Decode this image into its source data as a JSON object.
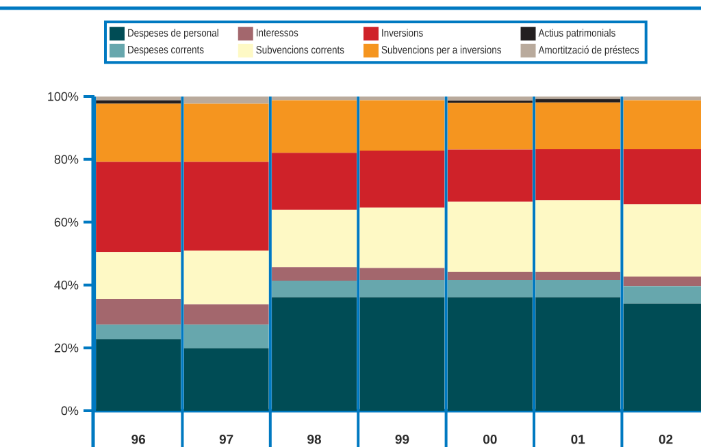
{
  "chart_data": {
    "type": "bar",
    "stacked": true,
    "legend": "top",
    "grid": "x",
    "categories": [
      "96",
      "97",
      "98",
      "99",
      "00",
      "01",
      "02"
    ],
    "ylim": [
      0,
      100
    ],
    "yticks": [
      {
        "value": 0,
        "label": "0%"
      },
      {
        "value": 20,
        "label": "20%"
      },
      {
        "value": 40,
        "label": "40%"
      },
      {
        "value": 60,
        "label": "60%"
      },
      {
        "value": 80,
        "label": "80%"
      },
      {
        "value": 100,
        "label": "100%"
      }
    ],
    "series": [
      {
        "name": "Despeses de personal",
        "color": "#004c55",
        "values": [
          22.8,
          19.9,
          36.1,
          36.1,
          36.1,
          36.1,
          34.1
        ]
      },
      {
        "name": "Despeses corrents",
        "color": "#67a7ad",
        "values": [
          4.6,
          7.5,
          5.3,
          5.5,
          5.5,
          5.5,
          5.5
        ]
      },
      {
        "name": "Interessos",
        "color": "#a3676d",
        "values": [
          8.1,
          6.5,
          4.3,
          3.8,
          2.6,
          2.6,
          3.1
        ]
      },
      {
        "name": "Subvencions corrents",
        "color": "#fef9c5",
        "values": [
          15.0,
          17.1,
          18.2,
          19.2,
          22.3,
          22.8,
          23.0
        ]
      },
      {
        "name": "Inversions",
        "color": "#cf2229",
        "values": [
          28.7,
          28.2,
          18.2,
          18.2,
          16.6,
          16.2,
          17.5
        ]
      },
      {
        "name": "Subvencions per a inversions",
        "color": "#f5951f",
        "values": [
          18.5,
          18.5,
          16.7,
          16.0,
          14.9,
          14.9,
          15.6
        ]
      },
      {
        "name": "Actius patrimonials",
        "color": "#231f20",
        "values": [
          1.1,
          0,
          0,
          0,
          0.7,
          1.1,
          0
        ]
      },
      {
        "name": "Amortització de préstecs",
        "color": "#b9aa9c",
        "values": [
          1.2,
          2.3,
          1.2,
          1.2,
          1.3,
          0.8,
          1.2
        ]
      }
    ]
  }
}
